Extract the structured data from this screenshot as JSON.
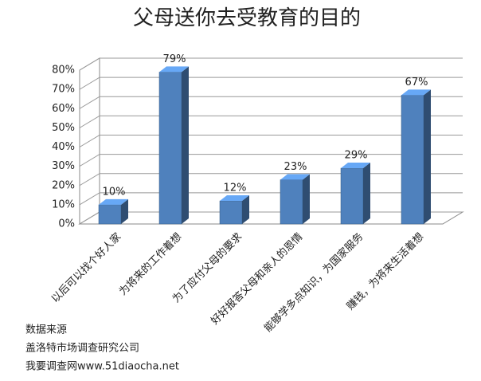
{
  "chart_data": {
    "type": "bar3d",
    "title": "父母送你去受教育的目的",
    "categories": [
      "以后可以找个好人家",
      "为将来的工作着想",
      "为了应付父母的要求",
      "好好报答父母和亲人的恩情",
      "能够学多点知识，为国家服务",
      "赚钱，为将来生活着想"
    ],
    "values": [
      10,
      79,
      12,
      23,
      29,
      67
    ],
    "value_labels": [
      "10%",
      "79%",
      "12%",
      "23%",
      "29%",
      "67%"
    ],
    "color": "#4f81bd",
    "ylim": [
      0,
      80
    ],
    "yticks": [
      {
        "value": 0,
        "label": "0%"
      },
      {
        "value": 10,
        "label": "10%"
      },
      {
        "value": 20,
        "label": "20%"
      },
      {
        "value": 30,
        "label": "30%"
      },
      {
        "value": 40,
        "label": "40%"
      },
      {
        "value": 50,
        "label": "50%"
      },
      {
        "value": 60,
        "label": "60%"
      },
      {
        "value": 70,
        "label": "70%"
      },
      {
        "value": 80,
        "label": "80%"
      }
    ],
    "grid": true,
    "source_lines": [
      "数据来源",
      "盖洛特市场调查研究公司",
      "我要调查网www.51diaocha.net"
    ]
  }
}
